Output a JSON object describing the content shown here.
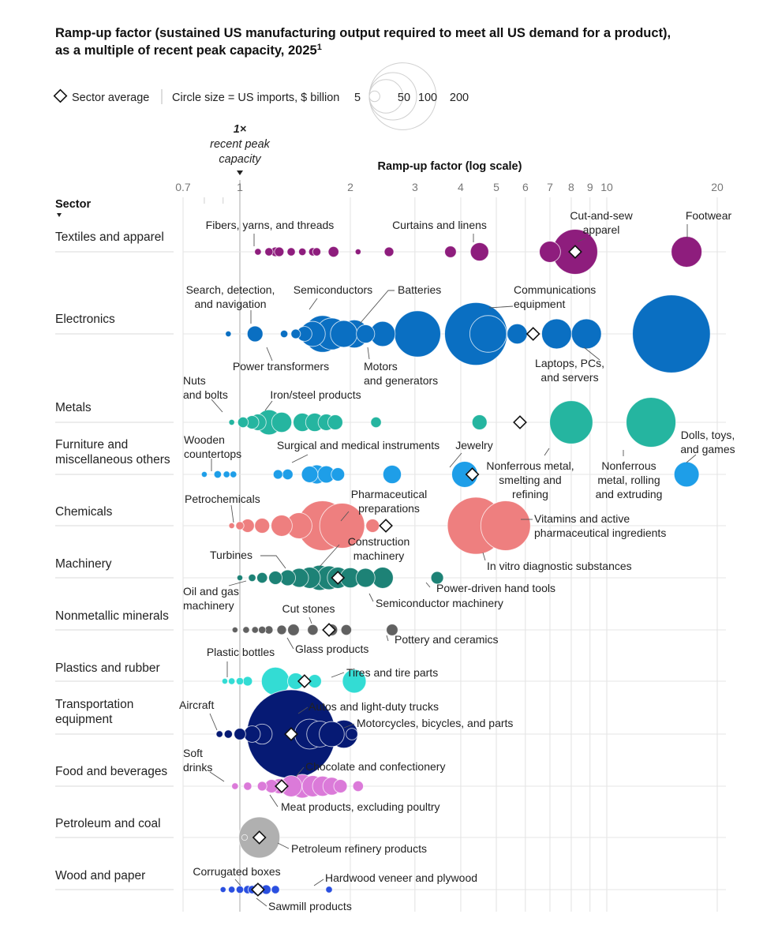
{
  "title_line1": "Ramp-up factor (sustained US manufacturing output required to meet all US demand for a product),",
  "title_line2": "as a multiple of recent peak capacity, 2025",
  "title_footnote": "1",
  "legend": {
    "sector_average": "Sector average",
    "circle_size": "Circle size = US imports, $ billion",
    "sizes": [
      5,
      50,
      100,
      200
    ],
    "size_labels": [
      "5",
      "50",
      "100",
      "200"
    ]
  },
  "peak_label": {
    "line1": "1×",
    "line2": "recent peak",
    "line3": "capacity"
  },
  "axis_title": "Ramp-up factor (log scale)",
  "sector_header": "Sector",
  "colors": {
    "textiles": "#8e1d7d",
    "electronics": "#0a6fc2",
    "metals": "#25b5a0",
    "furniture": "#1e9ee8",
    "chemicals": "#ee7f7f",
    "machinery": "#1d8276",
    "nonmetallic": "#616161",
    "plastics": "#33dcd4",
    "transportation": "#061a74",
    "food": "#db7ad9",
    "petroleum": "#b0b0b0",
    "wood": "#2a4fe0"
  },
  "chart_data": {
    "type": "scatter",
    "x_scale": "log",
    "xlim": [
      0.7,
      20
    ],
    "x_ticks": [
      0.7,
      1,
      2,
      3,
      4,
      5,
      6,
      7,
      8,
      9,
      10,
      20
    ],
    "x_tick_labels": [
      "0.7",
      "1",
      "2",
      "3",
      "4",
      "5",
      "6",
      "7",
      "8",
      "9",
      "10",
      "20"
    ],
    "grid": true,
    "legend_placement": "top-left",
    "sectors": [
      {
        "name": "Textiles and apparel",
        "label_lines": [
          "Textiles and apparel"
        ],
        "color_key": "textiles",
        "average": 8.2,
        "points": [
          [
            1.12,
            2
          ],
          [
            1.2,
            3
          ],
          [
            1.25,
            4
          ],
          [
            1.28,
            4
          ],
          [
            1.38,
            3
          ],
          [
            1.48,
            2.5
          ],
          [
            1.58,
            3
          ],
          [
            1.62,
            3
          ],
          [
            1.8,
            5
          ],
          [
            2.1,
            1.5
          ],
          [
            2.55,
            4
          ],
          [
            3.75,
            6
          ],
          [
            4.5,
            15
          ],
          [
            7.0,
            20
          ],
          [
            8.2,
            90
          ],
          [
            16.5,
            42
          ]
        ]
      },
      {
        "name": "Electronics",
        "label_lines": [
          "Electronics"
        ],
        "color_key": "electronics",
        "average": 6.3,
        "points": [
          [
            0.93,
            1.5
          ],
          [
            1.1,
            11
          ],
          [
            1.32,
            2.5
          ],
          [
            1.42,
            4
          ],
          [
            1.5,
            10
          ],
          [
            1.58,
            28
          ],
          [
            1.68,
            60
          ],
          [
            1.78,
            45
          ],
          [
            1.92,
            32
          ],
          [
            2.05,
            35
          ],
          [
            2.2,
            15
          ],
          [
            2.45,
            28
          ],
          [
            3.05,
            95
          ],
          [
            4.4,
            175
          ],
          [
            4.75,
            60
          ],
          [
            5.7,
            18
          ],
          [
            7.3,
            40
          ],
          [
            8.8,
            40
          ],
          [
            15,
            270
          ]
        ]
      },
      {
        "name": "Metals",
        "label_lines": [
          "Metals"
        ],
        "color_key": "metals",
        "average": 5.8,
        "points": [
          [
            0.95,
            1.5
          ],
          [
            1.02,
            5
          ],
          [
            1.08,
            8
          ],
          [
            1.12,
            12
          ],
          [
            1.2,
            28
          ],
          [
            1.3,
            18
          ],
          [
            1.48,
            15
          ],
          [
            1.6,
            15
          ],
          [
            1.72,
            12
          ],
          [
            1.82,
            10
          ],
          [
            2.35,
            5
          ],
          [
            4.5,
            10
          ],
          [
            8.0,
            83
          ],
          [
            13.2,
            110
          ]
        ]
      },
      {
        "name": "Furniture and miscellaneous others",
        "label_lines": [
          "Furniture and",
          "miscellaneous others"
        ],
        "color_key": "furniture",
        "average": 4.3,
        "points": [
          [
            0.8,
            1.5
          ],
          [
            0.87,
            2.5
          ],
          [
            0.92,
            2
          ],
          [
            0.96,
            2
          ],
          [
            1.27,
            4
          ],
          [
            1.35,
            5
          ],
          [
            1.55,
            12
          ],
          [
            1.62,
            16
          ],
          [
            1.72,
            13
          ],
          [
            1.85,
            8
          ],
          [
            2.6,
            15
          ],
          [
            4.1,
            30
          ],
          [
            16.5,
            28
          ]
        ]
      },
      {
        "name": "Chemicals",
        "label_lines": [
          "Chemicals"
        ],
        "color_key": "chemicals",
        "average": 2.5,
        "points": [
          [
            0.95,
            1.5
          ],
          [
            1.0,
            3
          ],
          [
            1.05,
            8
          ],
          [
            1.15,
            10
          ],
          [
            1.3,
            20
          ],
          [
            1.45,
            30
          ],
          [
            1.68,
            110
          ],
          [
            1.9,
            90
          ],
          [
            2.3,
            8
          ],
          [
            4.4,
            145
          ],
          [
            5.3,
            110
          ]
        ]
      },
      {
        "name": "Machinery",
        "label_lines": [
          "Machinery"
        ],
        "color_key": "machinery",
        "average": 1.85,
        "points": [
          [
            1.0,
            1.5
          ],
          [
            1.08,
            2.5
          ],
          [
            1.15,
            5
          ],
          [
            1.25,
            8
          ],
          [
            1.35,
            11
          ],
          [
            1.45,
            16
          ],
          [
            1.55,
            20
          ],
          [
            1.65,
            28
          ],
          [
            1.75,
            25
          ],
          [
            1.85,
            20
          ],
          [
            2.0,
            18
          ],
          [
            2.2,
            16
          ],
          [
            2.45,
            20
          ],
          [
            3.45,
            7
          ]
        ]
      },
      {
        "name": "Nonmetallic minerals",
        "label_lines": [
          "Nonmetallic minerals"
        ],
        "color_key": "nonmetallic",
        "average": 1.75,
        "points": [
          [
            0.97,
            1.5
          ],
          [
            1.04,
            2
          ],
          [
            1.1,
            2
          ],
          [
            1.15,
            2.5
          ],
          [
            1.2,
            3
          ],
          [
            1.3,
            4
          ],
          [
            1.4,
            6
          ],
          [
            1.58,
            5
          ],
          [
            1.78,
            6
          ],
          [
            1.95,
            5
          ],
          [
            2.6,
            6
          ]
        ]
      },
      {
        "name": "Plastics and rubber",
        "label_lines": [
          "Plastics and rubber"
        ],
        "color_key": "plastics",
        "average": 1.5,
        "points": [
          [
            0.91,
            1.5
          ],
          [
            0.95,
            2
          ],
          [
            1.0,
            2.5
          ],
          [
            1.05,
            4
          ],
          [
            1.25,
            35
          ],
          [
            1.42,
            12
          ],
          [
            1.6,
            8
          ],
          [
            2.05,
            25
          ]
        ]
      },
      {
        "name": "Transportation equipment",
        "label_lines": [
          "Transportation",
          "equipment"
        ],
        "color_key": "transportation",
        "average": 1.38,
        "points": [
          [
            0.88,
            2
          ],
          [
            0.93,
            3
          ],
          [
            1.0,
            6
          ],
          [
            1.08,
            12
          ],
          [
            1.15,
            18
          ],
          [
            1.38,
            350
          ],
          [
            1.55,
            40
          ],
          [
            1.65,
            30
          ],
          [
            1.78,
            28
          ],
          [
            1.92,
            35
          ],
          [
            2.02,
            6
          ]
        ]
      },
      {
        "name": "Food and beverages",
        "label_lines": [
          "Food and beverages"
        ],
        "color_key": "food",
        "average": 1.3,
        "points": [
          [
            0.97,
            2
          ],
          [
            1.05,
            3
          ],
          [
            1.15,
            4
          ],
          [
            1.22,
            8
          ],
          [
            1.28,
            10
          ],
          [
            1.38,
            20
          ],
          [
            1.48,
            25
          ],
          [
            1.58,
            20
          ],
          [
            1.68,
            18
          ],
          [
            1.78,
            14
          ],
          [
            1.88,
            8
          ],
          [
            2.1,
            5
          ]
        ]
      },
      {
        "name": "Petroleum and coal",
        "label_lines": [
          "Petroleum and coal"
        ],
        "color_key": "petroleum",
        "average": 1.13,
        "points": [
          [
            1.03,
            1.5
          ],
          [
            1.13,
            75
          ]
        ]
      },
      {
        "name": "Wood and paper",
        "label_lines": [
          "Wood and paper"
        ],
        "color_key": "wood",
        "average": 1.12,
        "points": [
          [
            0.9,
            1.5
          ],
          [
            0.95,
            2
          ],
          [
            1.0,
            2.5
          ],
          [
            1.05,
            3
          ],
          [
            1.08,
            3
          ],
          [
            1.12,
            6
          ],
          [
            1.18,
            4
          ],
          [
            1.25,
            3
          ],
          [
            1.75,
            2
          ]
        ]
      }
    ],
    "annotations": [
      {
        "row": 0,
        "x": 1.6,
        "lines": [
          "Fibers, yarns, and threads"
        ]
      },
      {
        "row": 0,
        "x": 4.3,
        "lines": [
          "Curtains and linens"
        ]
      },
      {
        "row": 0,
        "x": 9.2,
        "lines": [
          "Cut-and-sew",
          "apparel"
        ]
      },
      {
        "row": 0,
        "x": 17,
        "lines": [
          "Footwear"
        ]
      },
      {
        "row": 1,
        "x": 1.07,
        "lines": [
          "Search, detection,",
          "and navigation"
        ]
      },
      {
        "row": 1,
        "x": 1.6,
        "lines": [
          "Semiconductors"
        ]
      },
      {
        "row": 1,
        "x": 2.9,
        "lines": [
          "Batteries"
        ]
      },
      {
        "row": 1,
        "x": 6.2,
        "lines": [
          "Communications",
          "equipment"
        ]
      },
      {
        "row": 1,
        "x": 1.5,
        "lines": [
          "Power transformers"
        ]
      },
      {
        "row": 1,
        "x": 2.6,
        "lines": [
          "Motors",
          "and generators"
        ]
      },
      {
        "row": 1,
        "x": 8.3,
        "lines": [
          "Laptops, PCs,",
          "and servers"
        ]
      },
      {
        "row": 2,
        "x": 0.88,
        "lines": [
          "Nuts",
          "and bolts"
        ]
      },
      {
        "row": 2,
        "x": 1.55,
        "lines": [
          "Iron/steel products"
        ]
      },
      {
        "row": 3,
        "x": 0.9,
        "lines": [
          "Wooden",
          "countertops"
        ]
      },
      {
        "row": 3,
        "x": 2.3,
        "lines": [
          "Surgical and medical instruments"
        ]
      },
      {
        "row": 3,
        "x": 4.1,
        "lines": [
          "Jewelry"
        ]
      },
      {
        "row": 3,
        "x": 17,
        "lines": [
          "Dolls, toys,",
          "and games"
        ]
      },
      {
        "row": 3,
        "x": 7.1,
        "lines": [
          "Nonferrous metal,",
          "smelting and",
          "refining"
        ]
      },
      {
        "row": 3,
        "x": 11.5,
        "lines": [
          "Nonferrous",
          "metal, rolling",
          "and extruding"
        ]
      },
      {
        "row": 4,
        "x": 0.95,
        "lines": [
          "Petrochemicals"
        ]
      },
      {
        "row": 4,
        "x": 2.6,
        "lines": [
          "Pharmaceutical",
          "preparations"
        ]
      },
      {
        "row": 4,
        "x": 10,
        "lines": [
          "Vitamins and active",
          "pharmaceutical ingredients"
        ]
      },
      {
        "row": 4,
        "x": 7.3,
        "lines": [
          "In vitro diagnostic substances"
        ]
      },
      {
        "row": 5,
        "x": 1.1,
        "lines": [
          "Turbines"
        ]
      },
      {
        "row": 5,
        "x": 2.6,
        "lines": [
          "Construction",
          "machinery"
        ]
      },
      {
        "row": 5,
        "x": 0.9,
        "lines": [
          "Oil and gas",
          "machinery"
        ]
      },
      {
        "row": 5,
        "x": 4.2,
        "lines": [
          "Power-driven hand tools"
        ]
      },
      {
        "row": 5,
        "x": 3.7,
        "lines": [
          "Semiconductor machinery"
        ]
      },
      {
        "row": 6,
        "x": 1.7,
        "lines": [
          "Cut stones"
        ]
      },
      {
        "row": 6,
        "x": 2.0,
        "lines": [
          "Glass products"
        ]
      },
      {
        "row": 6,
        "x": 3.6,
        "lines": [
          "Pottery and ceramics"
        ]
      },
      {
        "row": 7,
        "x": 1.0,
        "lines": [
          "Plastic bottles"
        ]
      },
      {
        "row": 7,
        "x": 2.9,
        "lines": [
          "Tires and tire parts"
        ]
      },
      {
        "row": 8,
        "x": 0.9,
        "lines": [
          "Aircraft"
        ]
      },
      {
        "row": 8,
        "x": 2.5,
        "lines": [
          "Autos and light-duty trucks"
        ]
      },
      {
        "row": 8,
        "x": 3.5,
        "lines": [
          "Motorcycles, bicycles, and parts"
        ]
      },
      {
        "row": 9,
        "x": 0.84,
        "lines": [
          "Soft",
          "drinks"
        ]
      },
      {
        "row": 9,
        "x": 2.5,
        "lines": [
          "Chocolate and confectionery"
        ]
      },
      {
        "row": 9,
        "x": 2.5,
        "lines": [
          "Meat products, excluding poultry"
        ]
      },
      {
        "row": 10,
        "x": 2.4,
        "lines": [
          "Petroleum refinery products"
        ]
      },
      {
        "row": 11,
        "x": 1.2,
        "lines": [
          "Corrugated boxes"
        ]
      },
      {
        "row": 11,
        "x": 3.0,
        "lines": [
          "Hardwood veneer and plywood"
        ]
      },
      {
        "row": 11,
        "x": 1.6,
        "lines": [
          "Sawmill products"
        ]
      }
    ]
  }
}
